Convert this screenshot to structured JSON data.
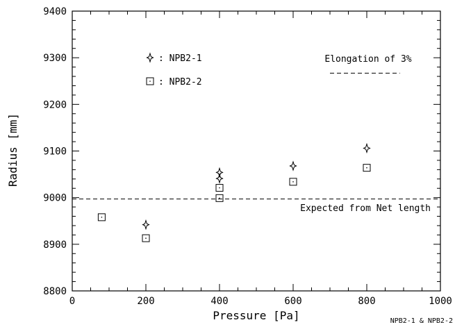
{
  "chart_data": {
    "type": "scatter",
    "xlabel": "Pressure [Pa]",
    "ylabel": "Radius [mm]",
    "xlim": [
      0,
      1000
    ],
    "ylim": [
      8800,
      9400
    ],
    "x_ticks": [
      "0",
      "200",
      "400",
      "600",
      "800",
      "1000"
    ],
    "y_ticks": [
      "8800",
      "8900",
      "9000",
      "9100",
      "9200",
      "9300",
      "9400"
    ],
    "grid": false,
    "legend_placement": "top-left",
    "series": [
      {
        "name": ": NPB2-1",
        "marker": "four-point-star",
        "x": [
          200,
          400,
          400,
          600,
          800
        ],
        "y": [
          8942,
          9041,
          9054,
          9068,
          9106
        ]
      },
      {
        "name": ": NPB2-2",
        "marker": "square",
        "x": [
          80,
          200,
          400,
          400,
          600,
          800
        ],
        "y": [
          8958,
          8913,
          8999,
          9021,
          9034,
          9064
        ]
      }
    ],
    "reference_lines": [
      {
        "label": "Expected from Net length",
        "y": 8997,
        "x_range": [
          0,
          1000
        ],
        "style": "dashed"
      },
      {
        "label": "Elongation of 3%",
        "y": 9267,
        "x_range": [
          700,
          890
        ],
        "style": "dashed"
      }
    ],
    "footnote": "NPB2-1 & NPB2-2"
  }
}
